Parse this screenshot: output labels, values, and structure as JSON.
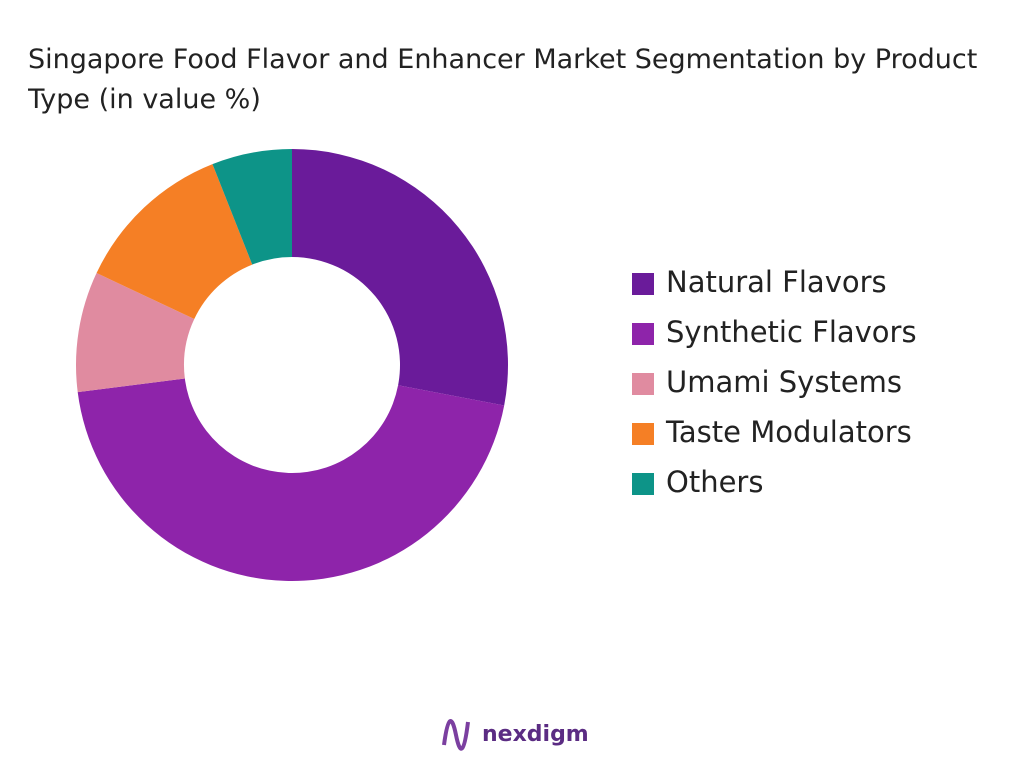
{
  "chart_data": {
    "type": "pie",
    "title": "Singapore Food Flavor and Enhancer Market Segmentation by Product Type (in value %)",
    "categories": [
      "Natural Flavors",
      "Synthetic Flavors",
      "Umami Systems",
      "Taste Modulators",
      "Others"
    ],
    "values": [
      28,
      45,
      9,
      12,
      6
    ],
    "colors": [
      "#6a1b9a",
      "#8e24aa",
      "#e08ba0",
      "#f57f25",
      "#0d9488"
    ],
    "legend": "right"
  },
  "logo": "nexdigm"
}
